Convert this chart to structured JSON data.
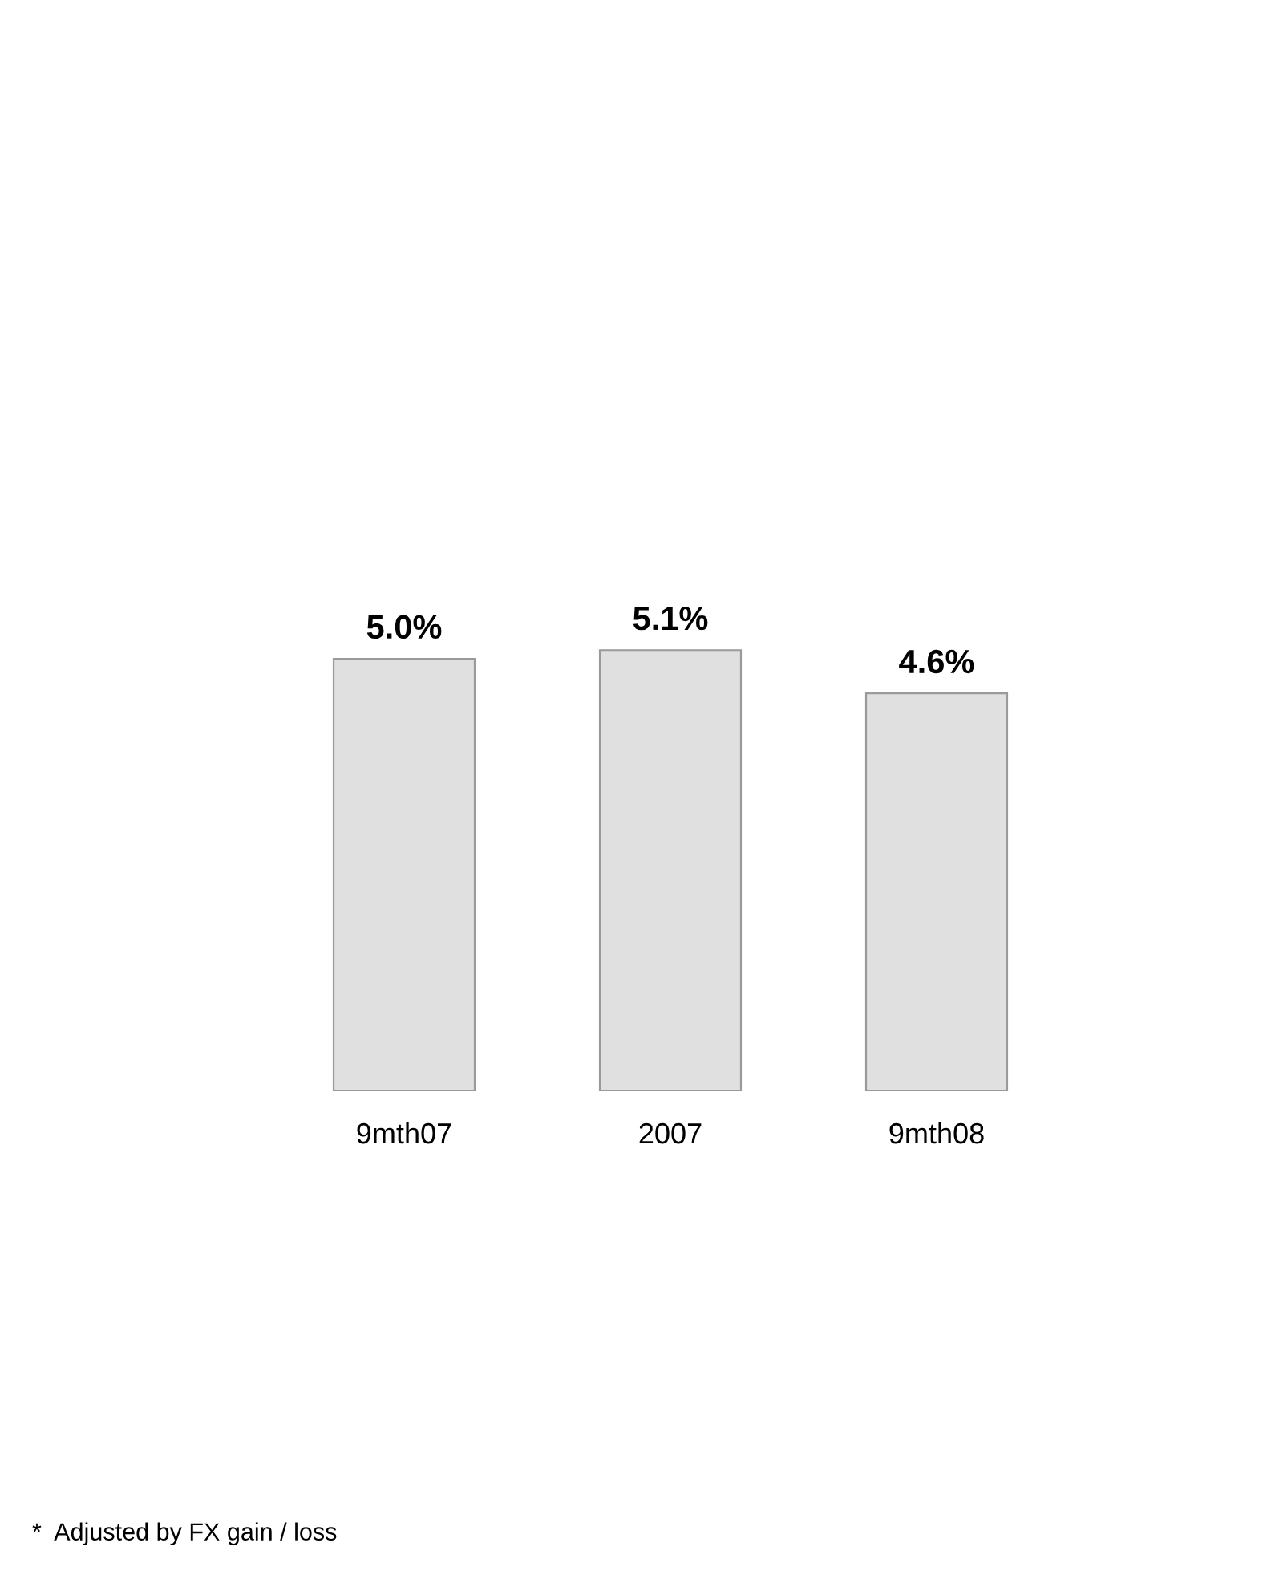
{
  "chart_data": {
    "type": "bar",
    "categories": [
      "9mth07",
      "2007",
      "9mth08"
    ],
    "values": [
      5.0,
      5.1,
      4.6
    ],
    "value_labels": [
      "5.0%",
      "5.1%",
      "4.6%"
    ],
    "color": "#e0e0e0",
    "annotations": [
      "*  Adjusted by FX gain / loss"
    ]
  }
}
